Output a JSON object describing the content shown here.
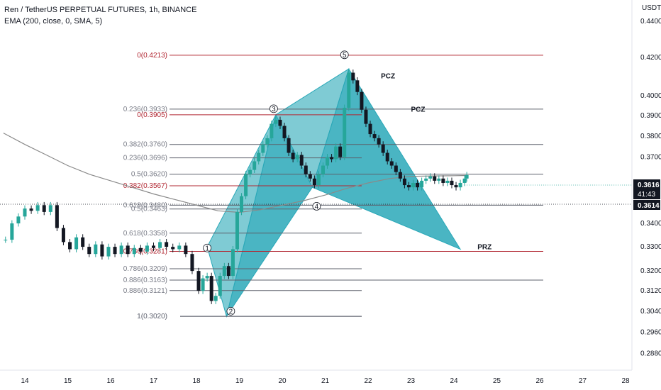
{
  "header": {
    "title": "Ren / TetherUS PERPETUAL FUTURES, 1h, BINANCE",
    "indicator": "EMA (200, close, 0, SMA, 5)"
  },
  "colors": {
    "up": "#26a69a",
    "down": "#131722",
    "pattern_fill": "#2aa8b8",
    "fib_gray": "#787b86",
    "fib_red": "#b22833",
    "ema": "#8a8a8a",
    "badge_dark": "#131722",
    "badge_text": "#ffffff"
  },
  "price_axis": {
    "currency": "USDT",
    "ticks": [
      "0.4400",
      "0.4200",
      "0.4000",
      "0.3900",
      "0.3800",
      "0.3700",
      "0.3400",
      "0.3300",
      "0.3200",
      "0.3120",
      "0.3040",
      "0.2960",
      "0.2880"
    ],
    "current_price": "0.3616",
    "countdown": "41:43",
    "ema_value": "0.3614"
  },
  "time_axis": {
    "ticks": [
      "14",
      "15",
      "16",
      "17",
      "18",
      "19",
      "20",
      "21",
      "22",
      "23",
      "24",
      "25",
      "26",
      "27",
      "28"
    ]
  },
  "fib_labels": [
    {
      "text": "0(0.4213)",
      "price": 0.4213,
      "color": "red"
    },
    {
      "text": "0.236(0.3933)",
      "price": 0.3933,
      "color": "gray"
    },
    {
      "text": "0(0.3905)",
      "price": 0.3905,
      "color": "red"
    },
    {
      "text": "0.382(0.3760)",
      "price": 0.376,
      "color": "gray"
    },
    {
      "text": "0.236(0.3696)",
      "price": 0.3696,
      "color": "gray"
    },
    {
      "text": "0.5(0.3620)",
      "price": 0.362,
      "color": "gray"
    },
    {
      "text": "0.382(0.3567)",
      "price": 0.3567,
      "color": "red"
    },
    {
      "text": "0.618(0.3480)",
      "price": 0.348,
      "color": "gray"
    },
    {
      "text": "0.5(0.3463)",
      "price": 0.3463,
      "color": "gray"
    },
    {
      "text": "0.618(0.3358)",
      "price": 0.3358,
      "color": "gray"
    },
    {
      "text": "0.786(0.3281)",
      "price": 0.3281,
      "color": "red"
    },
    {
      "text": "0.786(0.3209)",
      "price": 0.3209,
      "color": "gray"
    },
    {
      "text": "0.886(0.3163)",
      "price": 0.3163,
      "color": "gray"
    },
    {
      "text": "0.886(0.3121)",
      "price": 0.3121,
      "color": "gray"
    },
    {
      "text": "1(0.3020)",
      "price": 0.302,
      "color": "gray"
    },
    {
      "text": "1(0.3020)",
      "price": 0.302,
      "color": "gray"
    }
  ],
  "points": [
    {
      "label": "1",
      "day": 18.25,
      "price": 0.3295
    },
    {
      "label": "2",
      "day": 18.8,
      "price": 0.304
    },
    {
      "label": "3",
      "day": 19.8,
      "price": 0.3935
    },
    {
      "label": "4",
      "day": 20.8,
      "price": 0.3475
    },
    {
      "label": "5",
      "day": 21.45,
      "price": 0.4215
    }
  ],
  "zones": [
    {
      "label": "PCZ",
      "day": 22.3,
      "price": 0.409
    },
    {
      "label": "PCZ",
      "day": 23.0,
      "price": 0.392
    },
    {
      "label": "PRZ",
      "day": 24.55,
      "price": 0.329
    }
  ],
  "chart_data": {
    "type": "candlestick",
    "title": "Ren / TetherUS PERPETUAL FUTURES, 1h, BINANCE",
    "xlabel": "",
    "ylabel": "USDT",
    "x_range": [
      13.5,
      28.3
    ],
    "y_scale": "log",
    "ylim": [
      0.282,
      0.452
    ],
    "close_series": [
      [
        13.55,
        0.333
      ],
      [
        13.7,
        0.34
      ],
      [
        13.85,
        0.343
      ],
      [
        14.0,
        0.3465
      ],
      [
        14.15,
        0.3455
      ],
      [
        14.3,
        0.348
      ],
      [
        14.45,
        0.345
      ],
      [
        14.6,
        0.348
      ],
      [
        14.75,
        0.338
      ],
      [
        14.9,
        0.332
      ],
      [
        15.05,
        0.329
      ],
      [
        15.2,
        0.334
      ],
      [
        15.35,
        0.33
      ],
      [
        15.5,
        0.327
      ],
      [
        15.65,
        0.331
      ],
      [
        15.8,
        0.326
      ],
      [
        15.95,
        0.33
      ],
      [
        16.1,
        0.327
      ],
      [
        16.25,
        0.3305
      ],
      [
        16.4,
        0.327
      ],
      [
        16.55,
        0.3295
      ],
      [
        16.7,
        0.328
      ],
      [
        16.85,
        0.3305
      ],
      [
        17.0,
        0.3295
      ],
      [
        17.15,
        0.332
      ],
      [
        17.3,
        0.33
      ],
      [
        17.45,
        0.329
      ],
      [
        17.6,
        0.3305
      ],
      [
        17.75,
        0.327
      ],
      [
        17.9,
        0.32
      ],
      [
        18.05,
        0.312
      ],
      [
        18.15,
        0.317
      ],
      [
        18.25,
        0.318
      ],
      [
        18.35,
        0.308
      ],
      [
        18.45,
        0.31
      ],
      [
        18.55,
        0.318
      ],
      [
        18.65,
        0.322
      ],
      [
        18.75,
        0.318
      ],
      [
        18.85,
        0.329
      ],
      [
        18.95,
        0.345
      ],
      [
        19.05,
        0.352
      ],
      [
        19.15,
        0.362
      ],
      [
        19.25,
        0.364
      ],
      [
        19.35,
        0.368
      ],
      [
        19.45,
        0.372
      ],
      [
        19.55,
        0.376
      ],
      [
        19.65,
        0.379
      ],
      [
        19.75,
        0.386
      ],
      [
        19.85,
        0.388
      ],
      [
        19.95,
        0.385
      ],
      [
        20.05,
        0.379
      ],
      [
        20.15,
        0.372
      ],
      [
        20.25,
        0.369
      ],
      [
        20.35,
        0.371
      ],
      [
        20.45,
        0.366
      ],
      [
        20.55,
        0.362
      ],
      [
        20.65,
        0.36
      ],
      [
        20.75,
        0.357
      ],
      [
        20.85,
        0.362
      ],
      [
        20.95,
        0.366
      ],
      [
        21.05,
        0.37
      ],
      [
        21.15,
        0.369
      ],
      [
        21.25,
        0.375
      ],
      [
        21.35,
        0.37
      ],
      [
        21.45,
        0.394
      ],
      [
        21.55,
        0.412
      ],
      [
        21.65,
        0.408
      ],
      [
        21.75,
        0.402
      ],
      [
        21.85,
        0.393
      ],
      [
        21.95,
        0.386
      ],
      [
        22.05,
        0.381
      ],
      [
        22.15,
        0.379
      ],
      [
        22.25,
        0.376
      ],
      [
        22.35,
        0.372
      ],
      [
        22.45,
        0.368
      ],
      [
        22.55,
        0.366
      ],
      [
        22.65,
        0.363
      ],
      [
        22.75,
        0.36
      ],
      [
        22.85,
        0.357
      ],
      [
        22.95,
        0.356
      ],
      [
        23.05,
        0.358
      ],
      [
        23.15,
        0.356
      ],
      [
        23.25,
        0.359
      ],
      [
        23.35,
        0.36
      ],
      [
        23.45,
        0.361
      ],
      [
        23.55,
        0.359
      ],
      [
        23.65,
        0.36
      ],
      [
        23.75,
        0.358
      ],
      [
        23.85,
        0.359
      ],
      [
        23.95,
        0.357
      ],
      [
        24.05,
        0.356
      ],
      [
        24.15,
        0.358
      ],
      [
        24.25,
        0.36
      ],
      [
        24.3,
        0.3616
      ]
    ],
    "ema_series": [
      [
        13.5,
        0.3815
      ],
      [
        14.0,
        0.376
      ],
      [
        14.5,
        0.371
      ],
      [
        15.0,
        0.366
      ],
      [
        15.5,
        0.362
      ],
      [
        16.0,
        0.359
      ],
      [
        16.5,
        0.356
      ],
      [
        17.0,
        0.353
      ],
      [
        17.5,
        0.3505
      ],
      [
        18.0,
        0.348
      ],
      [
        18.5,
        0.3455
      ],
      [
        19.0,
        0.3448
      ],
      [
        19.5,
        0.346
      ],
      [
        20.0,
        0.348
      ],
      [
        20.5,
        0.35
      ],
      [
        21.0,
        0.3525
      ],
      [
        21.5,
        0.3555
      ],
      [
        22.0,
        0.358
      ],
      [
        22.5,
        0.36
      ],
      [
        23.0,
        0.361
      ],
      [
        23.5,
        0.3612
      ],
      [
        24.0,
        0.3613
      ],
      [
        24.3,
        0.3614
      ]
    ],
    "pattern_points": [
      {
        "day": 18.25,
        "price": 0.33
      },
      {
        "day": 18.7,
        "price": 0.302
      },
      {
        "day": 19.85,
        "price": 0.3905
      },
      {
        "day": 20.7,
        "price": 0.356
      },
      {
        "day": 21.55,
        "price": 0.414
      },
      {
        "day": 24.15,
        "price": 0.329
      }
    ]
  }
}
